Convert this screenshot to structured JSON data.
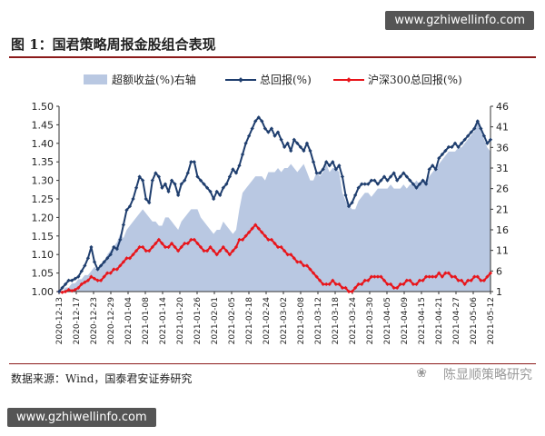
{
  "watermark_url": "www.gzhiwellinfo.com",
  "title": "图 1：国君策略周报金股组合表现",
  "source": "数据来源：Wind，国泰君安证券研究",
  "logo_text": "陈显顺策略研究",
  "colors": {
    "excess": "#b9c8e2",
    "total": "#1f3e6e",
    "hs300": "#e8151b",
    "axis": "#333333"
  },
  "chart_data": {
    "type": "line",
    "legend": {
      "placement": "top",
      "entries": [
        "超额收益(%)右轴",
        "总回报(%)",
        "沪深300总回报(%)"
      ]
    },
    "y_left": {
      "lim": [
        1.0,
        1.5
      ],
      "ticks": [
        "1.00",
        "1.05",
        "1.10",
        "1.15",
        "1.20",
        "1.25",
        "1.30",
        "1.35",
        "1.40",
        "1.45",
        "1.50"
      ]
    },
    "y_right": {
      "lim": [
        1,
        46
      ],
      "ticks": [
        "1",
        "6",
        "11",
        "16",
        "21",
        "26",
        "31",
        "36",
        "41",
        "46"
      ]
    },
    "x_ticks": [
      "2020-12-13",
      "2020-12-17",
      "2020-12-23",
      "2020-12-29",
      "2021-01-04",
      "2021-01-08",
      "2021-01-14",
      "2021-01-20",
      "2021-01-26",
      "2021-02-01",
      "2021-02-05",
      "2021-02-18",
      "2021-02-24",
      "2021-03-02",
      "2021-03-08",
      "2021-03-12",
      "2021-03-18",
      "2021-03-24",
      "2021-03-30",
      "2021-04-05",
      "2021-04-09",
      "2021-04-15",
      "2021-04-21",
      "2021-04-27",
      "2021-05-06",
      "2021-05-12"
    ],
    "series": [
      {
        "name": "超额收益(%)右轴",
        "type": "area",
        "axis": "right",
        "values": [
          1,
          1,
          2,
          2,
          3,
          3,
          4,
          4,
          5,
          5,
          6,
          7,
          6,
          7,
          8,
          10,
          11,
          12,
          13,
          15,
          14,
          16,
          17,
          18,
          19,
          20,
          21,
          20,
          19,
          18,
          18,
          17,
          17,
          19,
          19,
          18,
          17,
          16,
          18,
          19,
          20,
          21,
          21,
          21,
          19,
          18,
          17,
          16,
          15,
          16,
          16,
          18,
          17,
          16,
          15,
          16,
          21,
          25,
          26,
          27,
          28,
          29,
          29,
          29,
          28,
          30,
          30,
          30,
          31,
          30,
          31,
          31,
          32,
          31,
          30,
          31,
          32,
          30,
          28,
          28,
          30,
          29,
          30,
          32,
          30,
          31,
          31,
          30,
          25,
          23,
          22,
          21,
          21,
          23,
          24,
          25,
          25,
          24,
          25,
          26,
          26,
          26,
          26,
          27,
          26,
          26,
          26,
          27,
          26,
          27,
          27,
          28,
          27,
          28,
          28,
          29,
          30,
          31,
          32,
          33,
          34,
          35,
          35,
          35,
          36,
          36,
          37,
          38,
          39,
          40,
          42,
          40,
          38,
          36,
          35
        ]
      },
      {
        "name": "总回报(%)",
        "type": "line",
        "axis": "left",
        "values": [
          1.0,
          1.01,
          1.02,
          1.03,
          1.03,
          1.035,
          1.04,
          1.055,
          1.07,
          1.09,
          1.12,
          1.08,
          1.06,
          1.07,
          1.08,
          1.09,
          1.1,
          1.12,
          1.115,
          1.14,
          1.18,
          1.22,
          1.23,
          1.25,
          1.28,
          1.31,
          1.3,
          1.25,
          1.24,
          1.3,
          1.32,
          1.31,
          1.28,
          1.29,
          1.27,
          1.3,
          1.29,
          1.26,
          1.29,
          1.3,
          1.32,
          1.35,
          1.35,
          1.31,
          1.3,
          1.29,
          1.28,
          1.27,
          1.25,
          1.27,
          1.26,
          1.28,
          1.29,
          1.31,
          1.33,
          1.32,
          1.34,
          1.37,
          1.4,
          1.42,
          1.44,
          1.46,
          1.47,
          1.46,
          1.44,
          1.43,
          1.44,
          1.42,
          1.43,
          1.41,
          1.39,
          1.4,
          1.38,
          1.41,
          1.4,
          1.39,
          1.38,
          1.4,
          1.38,
          1.35,
          1.32,
          1.32,
          1.33,
          1.35,
          1.34,
          1.35,
          1.33,
          1.34,
          1.31,
          1.26,
          1.23,
          1.24,
          1.26,
          1.28,
          1.29,
          1.29,
          1.29,
          1.3,
          1.3,
          1.29,
          1.3,
          1.31,
          1.3,
          1.31,
          1.32,
          1.3,
          1.31,
          1.32,
          1.31,
          1.3,
          1.29,
          1.28,
          1.29,
          1.3,
          1.29,
          1.33,
          1.34,
          1.33,
          1.36,
          1.37,
          1.38,
          1.39,
          1.39,
          1.4,
          1.39,
          1.4,
          1.41,
          1.42,
          1.43,
          1.44,
          1.46,
          1.44,
          1.42,
          1.4,
          1.41
        ]
      },
      {
        "name": "沪深300总回报(%)",
        "type": "line",
        "axis": "left",
        "values": [
          1.0,
          0.998,
          1.0,
          1.005,
          1.002,
          1.005,
          1.01,
          1.02,
          1.025,
          1.03,
          1.04,
          1.035,
          1.03,
          1.03,
          1.04,
          1.05,
          1.05,
          1.06,
          1.06,
          1.07,
          1.08,
          1.09,
          1.09,
          1.1,
          1.11,
          1.12,
          1.12,
          1.11,
          1.11,
          1.12,
          1.13,
          1.14,
          1.13,
          1.12,
          1.12,
          1.13,
          1.12,
          1.11,
          1.12,
          1.13,
          1.13,
          1.14,
          1.14,
          1.13,
          1.12,
          1.11,
          1.11,
          1.12,
          1.11,
          1.1,
          1.11,
          1.12,
          1.11,
          1.1,
          1.11,
          1.12,
          1.14,
          1.14,
          1.15,
          1.16,
          1.17,
          1.18,
          1.17,
          1.16,
          1.15,
          1.14,
          1.14,
          1.13,
          1.12,
          1.12,
          1.11,
          1.1,
          1.1,
          1.09,
          1.08,
          1.08,
          1.07,
          1.07,
          1.06,
          1.05,
          1.04,
          1.03,
          1.02,
          1.02,
          1.02,
          1.03,
          1.02,
          1.02,
          1.01,
          1.01,
          1.0,
          1.0,
          1.01,
          1.02,
          1.02,
          1.03,
          1.03,
          1.04,
          1.04,
          1.04,
          1.04,
          1.03,
          1.02,
          1.02,
          1.01,
          1.01,
          1.02,
          1.02,
          1.03,
          1.03,
          1.02,
          1.02,
          1.03,
          1.03,
          1.04,
          1.04,
          1.04,
          1.04,
          1.05,
          1.04,
          1.05,
          1.05,
          1.04,
          1.04,
          1.03,
          1.03,
          1.02,
          1.03,
          1.03,
          1.04,
          1.04,
          1.03,
          1.03,
          1.04,
          1.05
        ]
      }
    ]
  }
}
